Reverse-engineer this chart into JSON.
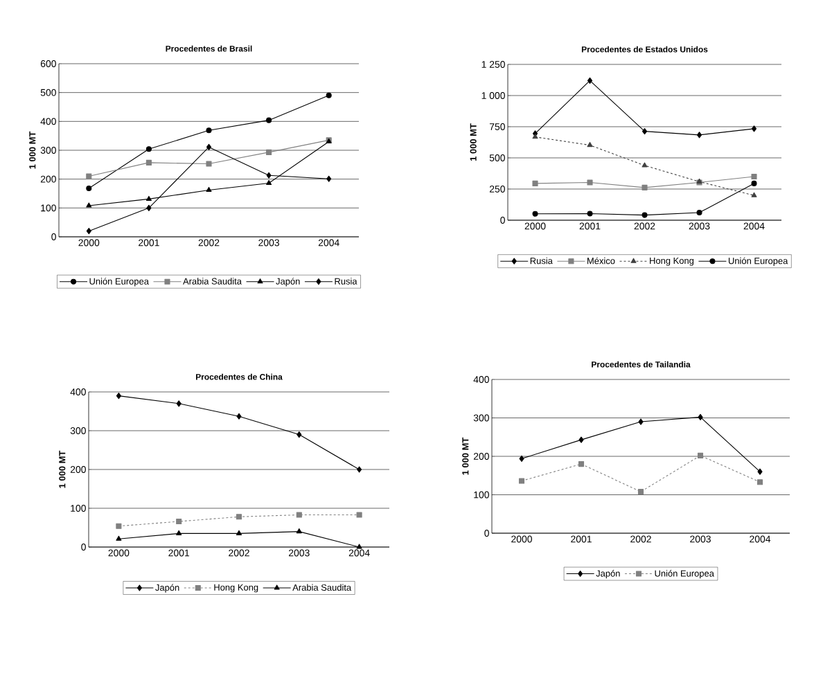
{
  "chart_data": [
    {
      "type": "line",
      "title": "Procedentes de Brasil",
      "ylabel": "1 000 MT",
      "categories": [
        "2000",
        "2001",
        "2002",
        "2003",
        "2004"
      ],
      "ylim": [
        0,
        600
      ],
      "yticks": [
        0,
        100,
        200,
        300,
        400,
        500,
        600
      ],
      "grid": "y",
      "legend": "bottom",
      "series": [
        {
          "name": "Unión Europea",
          "color": "#000000",
          "marker": "circle",
          "line_style": "solid",
          "values": [
            168,
            304,
            369,
            404,
            490
          ]
        },
        {
          "name": "Arabia Saudita",
          "color": "#808080",
          "marker": "square",
          "line_style": "solid",
          "values": [
            210,
            257,
            253,
            293,
            335
          ]
        },
        {
          "name": "Japón",
          "color": "#000000",
          "marker": "triangle",
          "line_style": "solid",
          "values": [
            108,
            131,
            162,
            186,
            330
          ]
        },
        {
          "name": "Rusia",
          "color": "#000000",
          "marker": "diamond",
          "line_style": "solid",
          "values": [
            20,
            100,
            311,
            213,
            201
          ]
        }
      ]
    },
    {
      "type": "line",
      "title": "Procedentes de Estados Unidos",
      "ylabel": "1 000 MT",
      "categories": [
        "2000",
        "2001",
        "2002",
        "2003",
        "2004"
      ],
      "ylim": [
        0,
        1250
      ],
      "yticks": [
        0,
        250,
        500,
        750,
        {
          "value": 1000,
          "label": "1 000"
        },
        {
          "value": 1250,
          "label": "1 250"
        }
      ],
      "grid": "y",
      "legend": "bottom",
      "series": [
        {
          "name": "Rusia",
          "color": "#000000",
          "marker": "diamond",
          "line_style": "solid",
          "values": [
            695,
            1120,
            713,
            684,
            734
          ]
        },
        {
          "name": "México",
          "color": "#808080",
          "marker": "square",
          "line_style": "solid",
          "values": [
            295,
            303,
            262,
            303,
            350
          ]
        },
        {
          "name": "Hong Kong",
          "color": "#404040",
          "marker": "triangle",
          "line_style": "dashed",
          "values": [
            668,
            602,
            439,
            309,
            199
          ]
        },
        {
          "name": "Unión Europea",
          "color": "#000000",
          "marker": "circle",
          "line_style": "solid",
          "values": [
            51,
            53,
            41,
            61,
            295
          ]
        }
      ]
    },
    {
      "type": "line",
      "title": "Procedentes de China",
      "ylabel": "1 000 MT",
      "categories": [
        "2000",
        "2001",
        "2002",
        "2003",
        "2004"
      ],
      "ylim": [
        0,
        400
      ],
      "yticks": [
        0,
        100,
        200,
        300,
        400
      ],
      "grid": "y",
      "legend": "bottom",
      "series": [
        {
          "name": "Japón",
          "color": "#000000",
          "marker": "diamond",
          "line_style": "solid",
          "values": [
            390,
            370,
            337,
            290,
            200
          ]
        },
        {
          "name": "Hong Kong",
          "color": "#808080",
          "marker": "square",
          "line_style": "dashed",
          "values": [
            54,
            66,
            78,
            83,
            83
          ]
        },
        {
          "name": "Arabia Saudita",
          "color": "#000000",
          "marker": "triangle",
          "line_style": "solid",
          "values": [
            21,
            35,
            35,
            40,
            0
          ]
        }
      ]
    },
    {
      "type": "line",
      "title": "Procedentes de Tailandia",
      "ylabel": "1 000 MT",
      "categories": [
        "2000",
        "2001",
        "2002",
        "2003",
        "2004"
      ],
      "ylim": [
        0,
        400
      ],
      "yticks": [
        0,
        100,
        200,
        300,
        400
      ],
      "grid": "y",
      "legend": "bottom",
      "series": [
        {
          "name": "Japón",
          "color": "#000000",
          "marker": "diamond",
          "line_style": "solid",
          "values": [
            194,
            243,
            290,
            302,
            160
          ]
        },
        {
          "name": "Unión Europea",
          "color": "#808080",
          "marker": "square",
          "line_style": "dashed",
          "values": [
            136,
            180,
            108,
            202,
            133
          ]
        }
      ]
    }
  ]
}
